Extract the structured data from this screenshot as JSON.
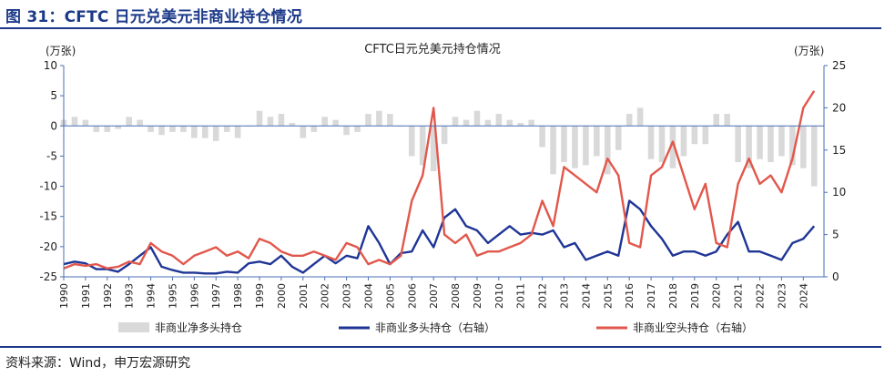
{
  "figure": {
    "title": "图 31：CFTC 日元兑美元非商业持仓情况",
    "source": "资料来源：Wind，申万宏源研究"
  },
  "chart_data": {
    "type": "area",
    "title": "CFTC日元兑美元持仓情况",
    "left_axis": {
      "unit_label": "(万张)",
      "ylim": [
        -25,
        10
      ],
      "ticks": [
        10,
        5,
        0,
        -5,
        -10,
        -15,
        -20,
        -25
      ]
    },
    "right_axis": {
      "unit_label": "(万张)",
      "ylim": [
        0,
        25
      ],
      "ticks": [
        25,
        20,
        15,
        10,
        5,
        0
      ]
    },
    "x_ticks": [
      "1990",
      "1991",
      "1992",
      "1993",
      "1994",
      "1995",
      "1996",
      "1997",
      "1998",
      "1999",
      "2000",
      "2001",
      "2002",
      "2003",
      "2004",
      "2005",
      "2006",
      "2007",
      "2008",
      "2009",
      "2010",
      "2011",
      "2012",
      "2013",
      "2014",
      "2015",
      "2016",
      "2017",
      "2018",
      "2019",
      "2020",
      "2021",
      "2022",
      "2023",
      "2024"
    ],
    "x": [
      1990.0,
      1990.5,
      1991.0,
      1991.5,
      1992.0,
      1992.5,
      1993.0,
      1993.5,
      1994.0,
      1994.5,
      1995.0,
      1995.5,
      1996.0,
      1996.5,
      1997.0,
      1997.5,
      1998.0,
      1998.5,
      1999.0,
      1999.5,
      2000.0,
      2000.5,
      2001.0,
      2001.5,
      2002.0,
      2002.5,
      2003.0,
      2003.5,
      2004.0,
      2004.5,
      2005.0,
      2005.5,
      2006.0,
      2006.5,
      2007.0,
      2007.5,
      2008.0,
      2008.5,
      2009.0,
      2009.5,
      2010.0,
      2010.5,
      2011.0,
      2011.5,
      2012.0,
      2012.5,
      2013.0,
      2013.5,
      2014.0,
      2014.5,
      2015.0,
      2015.5,
      2016.0,
      2016.5,
      2017.0,
      2017.5,
      2018.0,
      2018.5,
      2019.0,
      2019.5,
      2020.0,
      2020.5,
      2021.0,
      2021.5,
      2022.0,
      2022.5,
      2023.0,
      2023.5,
      2024.0,
      2024.5
    ],
    "series": [
      {
        "name": "非商业净多头持仓",
        "axis": "left",
        "style": "area",
        "color": "#d9d9d9",
        "values": [
          1,
          1.5,
          1,
          -1,
          -1,
          -0.5,
          1.5,
          1,
          -1,
          -1.5,
          -1,
          -1,
          -2,
          -2,
          -2.5,
          -1,
          -2,
          0,
          2.5,
          1.5,
          2,
          0.5,
          -2,
          -1,
          1.5,
          1,
          -1.5,
          -1,
          2,
          2.5,
          2,
          0,
          -5,
          -6.5,
          -7.5,
          -3,
          1.5,
          1,
          2.5,
          1,
          2,
          1,
          0.5,
          1,
          -3.5,
          -8,
          -6,
          -7,
          -6.5,
          -5,
          -8,
          -4,
          2,
          3,
          -5.5,
          -6,
          -7,
          -5,
          -3,
          -3,
          2,
          2,
          -6,
          -7,
          -5.5,
          -6,
          -5,
          -6.5,
          -7,
          -10
        ]
      },
      {
        "name": "非商业多头持仓（右轴）",
        "axis": "right",
        "style": "line",
        "color": "#1f3596",
        "values": [
          1.5,
          1.8,
          1.6,
          0.9,
          0.9,
          0.6,
          1.5,
          2.5,
          3.5,
          1.2,
          0.8,
          0.5,
          0.5,
          0.4,
          0.4,
          0.6,
          0.5,
          1.6,
          1.8,
          1.5,
          2.5,
          1.2,
          0.5,
          1.5,
          2.5,
          1.6,
          2.5,
          2.2,
          6,
          4,
          1.5,
          2.8,
          3,
          5.5,
          3.5,
          7,
          8,
          6,
          5.5,
          4,
          5,
          6,
          5,
          5.2,
          5,
          5.5,
          3.5,
          4,
          2,
          2.5,
          3,
          2.5,
          9,
          8,
          6,
          4.5,
          2.5,
          3,
          3,
          2.5,
          3,
          5,
          6.5,
          3,
          3,
          2.5,
          2,
          4,
          4.5,
          6
        ]
      },
      {
        "name": "非商业空头持仓（右轴）",
        "axis": "right",
        "style": "line",
        "color": "#e2574c",
        "values": [
          1,
          1.5,
          1.3,
          1.5,
          1,
          1.2,
          1.8,
          1.5,
          4,
          3,
          2.5,
          1.5,
          2.5,
          3,
          3.5,
          2.5,
          3,
          2.2,
          4.5,
          4,
          3,
          2.5,
          2.5,
          3,
          2.5,
          2,
          4,
          3.5,
          1.5,
          2,
          1.5,
          2.5,
          9,
          12,
          20,
          5,
          4,
          5,
          2.5,
          3,
          3,
          3.5,
          4,
          5,
          9,
          6,
          13,
          12,
          11,
          10,
          14,
          12,
          4,
          3.5,
          12,
          13,
          16,
          12,
          8,
          11,
          4,
          3.5,
          11,
          14,
          11,
          12,
          10,
          14,
          20,
          22
        ]
      }
    ],
    "legend": {
      "placement": "bottom"
    }
  }
}
